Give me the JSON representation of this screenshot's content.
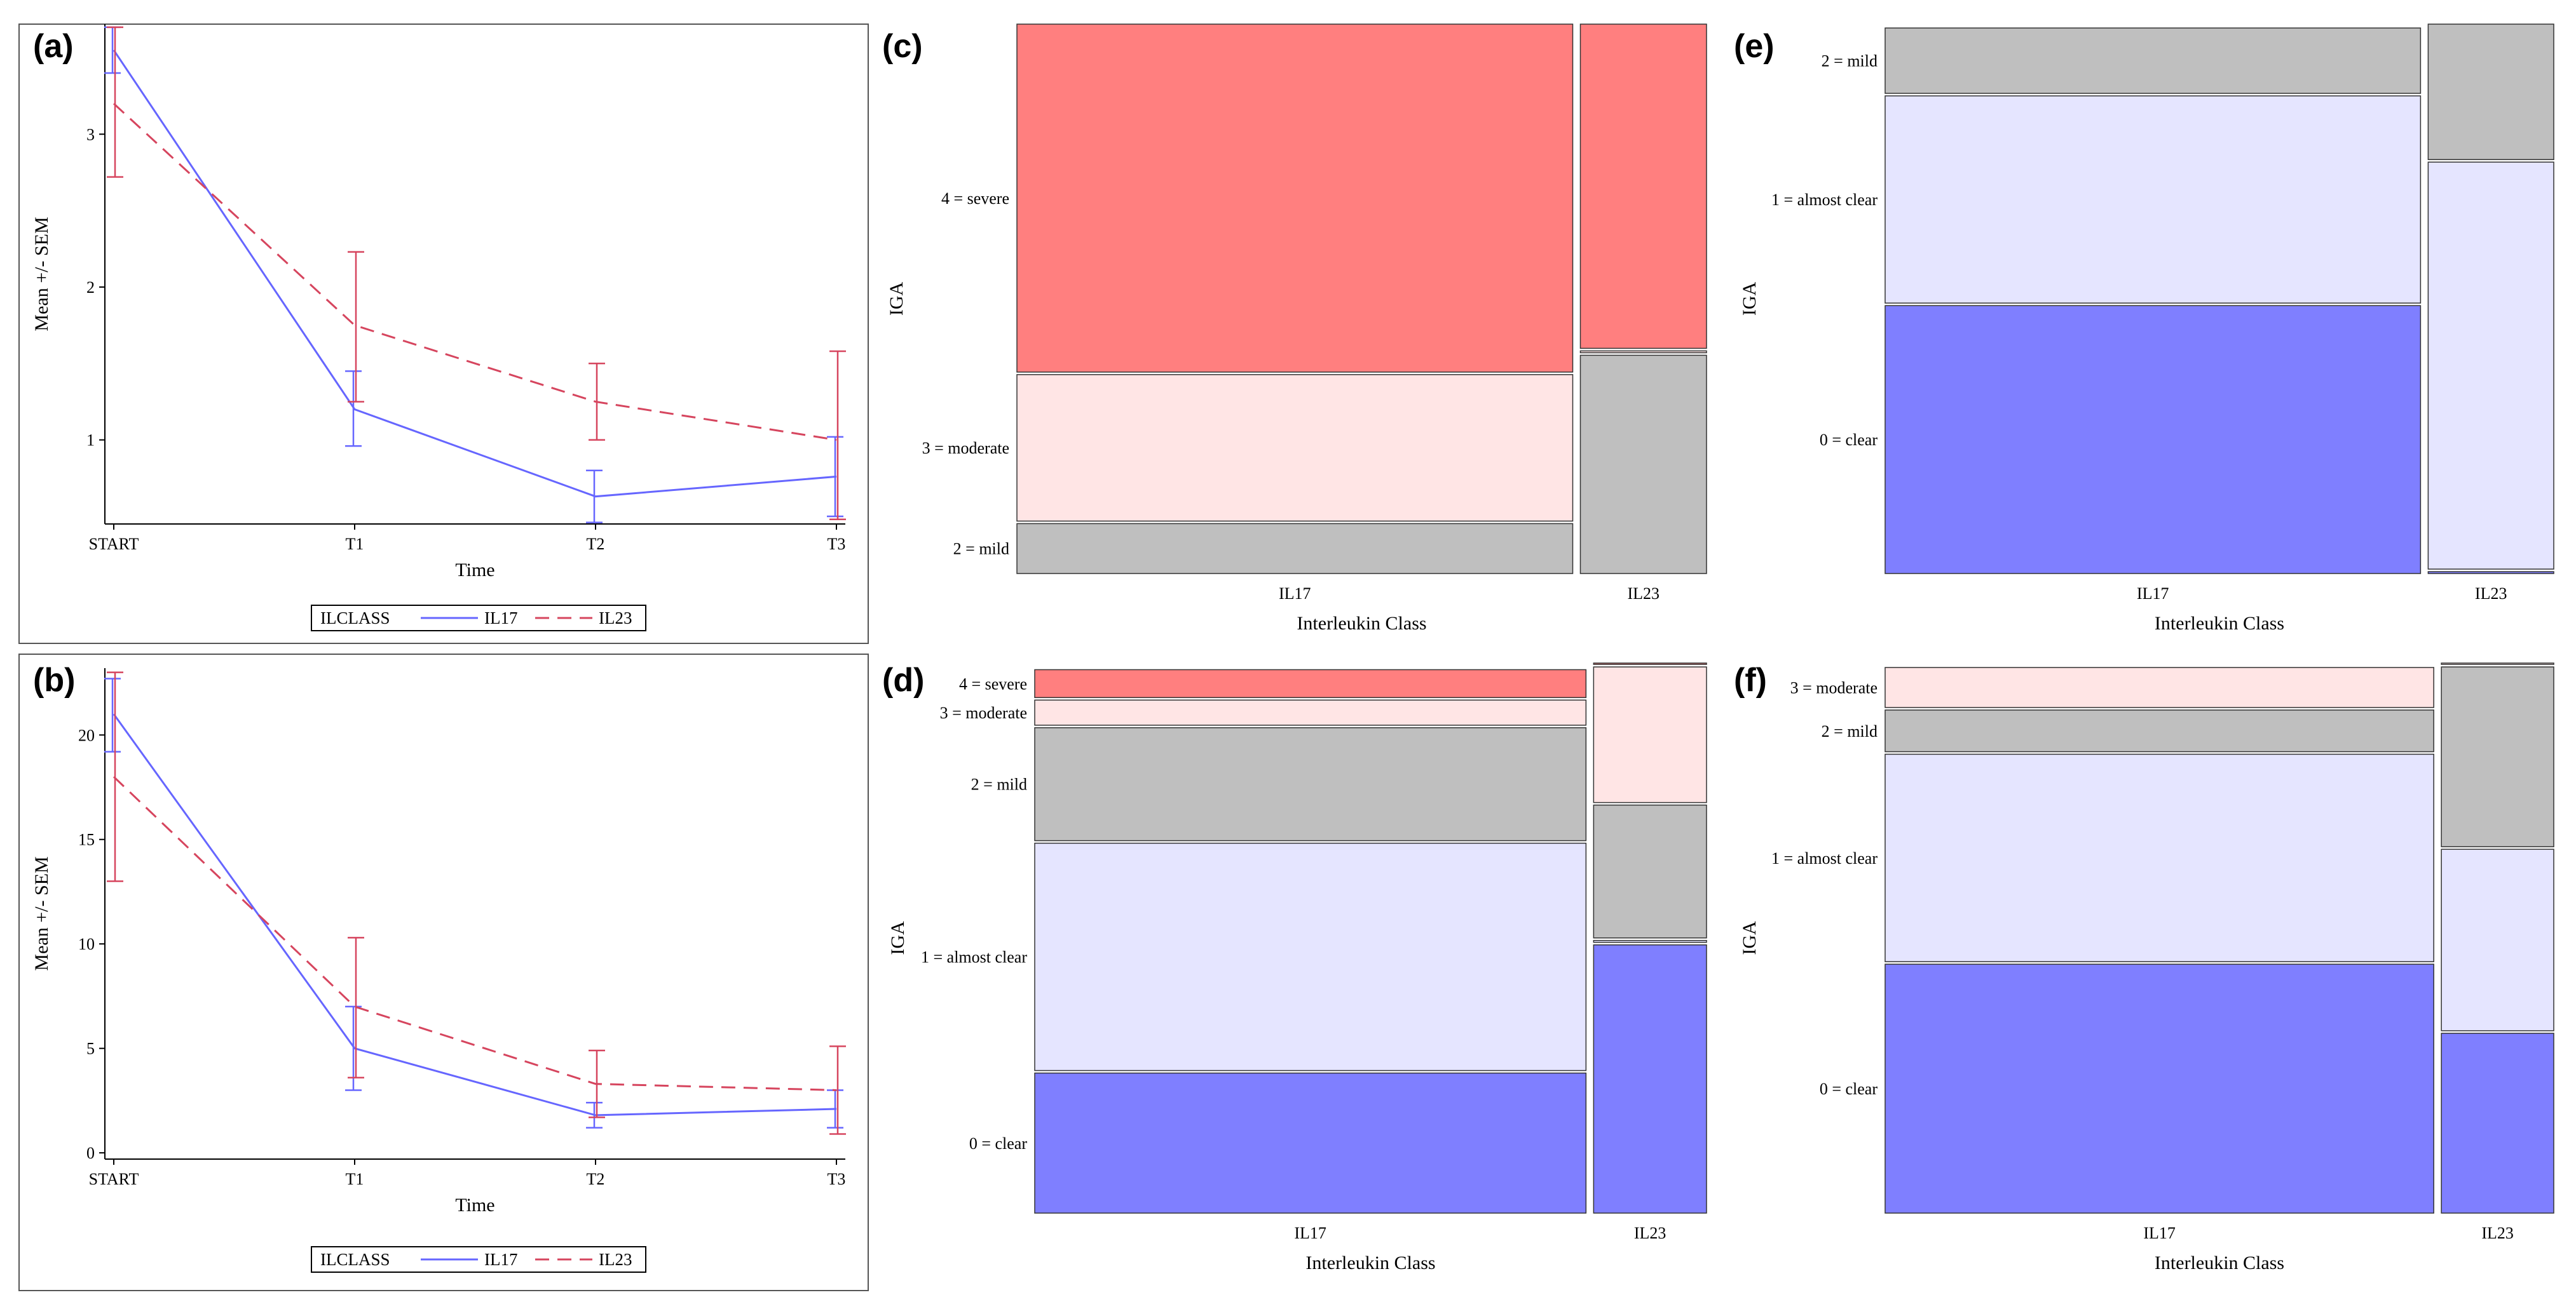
{
  "colors": {
    "il17": "#6666ff",
    "il23": "#d6455e",
    "severe": "#ff7f7f",
    "moderate": "#ffe5e5",
    "mild": "#bfbfbf",
    "almost_clear": "#e5e5ff",
    "clear": "#7f7fff"
  },
  "chart_data": [
    {
      "panel": "(a)",
      "type": "line",
      "xlabel": "Time",
      "ylabel": "Mean +/- SEM",
      "categories": [
        "START",
        "T1",
        "T2",
        "T3"
      ],
      "yticks": [
        "1",
        "2",
        "3"
      ],
      "yticks_values": [
        1,
        2,
        3
      ],
      "ylim": [
        0.45,
        3.72
      ],
      "legend_title": "ILCLASS",
      "series": [
        {
          "name": "IL17",
          "values": [
            3.55,
            1.2,
            0.63,
            0.76
          ],
          "lower": [
            3.4,
            0.96,
            0.46,
            0.5
          ],
          "upper": [
            3.7,
            1.45,
            0.8,
            1.02
          ]
        },
        {
          "name": "IL23",
          "values": [
            3.2,
            1.75,
            1.25,
            1.0
          ],
          "lower": [
            2.72,
            1.25,
            1.0,
            0.48
          ],
          "upper": [
            3.7,
            2.23,
            1.5,
            1.58
          ]
        }
      ]
    },
    {
      "panel": "(b)",
      "type": "line",
      "xlabel": "Time",
      "ylabel": "Mean +/- SEM",
      "categories": [
        "START",
        "T1",
        "T2",
        "T3"
      ],
      "yticks": [
        "0",
        "5",
        "10",
        "15",
        "20"
      ],
      "yticks_values": [
        0,
        5,
        10,
        15,
        20
      ],
      "ylim": [
        -0.3,
        23.2
      ],
      "legend_title": "ILCLASS",
      "series": [
        {
          "name": "IL17",
          "values": [
            21.0,
            5.0,
            1.8,
            2.1
          ],
          "lower": [
            19.2,
            3.0,
            1.2,
            1.2
          ],
          "upper": [
            22.7,
            7.0,
            2.4,
            3.0
          ]
        },
        {
          "name": "IL23",
          "values": [
            18.0,
            7.0,
            3.3,
            3.0
          ],
          "lower": [
            13.0,
            3.6,
            1.7,
            0.9
          ],
          "upper": [
            23.0,
            10.3,
            4.9,
            5.1
          ]
        }
      ]
    },
    {
      "panel": "(c)",
      "type": "mosaic",
      "xlabel": "Interleukin Class",
      "ylabel": "IGA",
      "columns": [
        {
          "name": "IL17",
          "weight": 0.815,
          "segments": [
            {
              "level": "mild",
              "share": 0.095
            },
            {
              "level": "moderate",
              "share": 0.27
            },
            {
              "level": "severe",
              "share": 0.635
            }
          ]
        },
        {
          "name": "IL23",
          "weight": 0.185,
          "segments": [
            {
              "level": "mild",
              "share": 0.4
            },
            {
              "level": "moderate",
              "share": 0.008
            },
            {
              "level": "severe",
              "share": 0.592
            }
          ]
        }
      ],
      "row_labels": [
        {
          "text": "4 = severe",
          "level": "severe"
        },
        {
          "text": "3 = moderate",
          "level": "moderate"
        },
        {
          "text": "2 = mild",
          "level": "mild"
        }
      ]
    },
    {
      "panel": "(d)",
      "type": "mosaic",
      "xlabel": "Interleukin Class",
      "ylabel": "IGA",
      "columns": [
        {
          "name": "IL17",
          "weight": 0.83,
          "segments": [
            {
              "level": "clear",
              "share": 0.258
            },
            {
              "level": "almost_clear",
              "share": 0.416
            },
            {
              "level": "mild",
              "share": 0.209
            },
            {
              "level": "moderate",
              "share": 0.05
            },
            {
              "level": "severe",
              "share": 0.055
            }
          ]
        },
        {
          "name": "IL23",
          "weight": 0.17,
          "segments": [
            {
              "level": "clear",
              "share": 0.49
            },
            {
              "level": "almost_clear",
              "share": 0.008
            },
            {
              "level": "mild",
              "share": 0.245
            },
            {
              "level": "moderate",
              "share": 0.25
            },
            {
              "level": "severe",
              "share": 0.007
            }
          ]
        }
      ],
      "row_labels": [
        {
          "text": "4 = severe",
          "level": "severe"
        },
        {
          "text": "3 = moderate",
          "level": "moderate"
        },
        {
          "text": "2 = mild",
          "level": "mild"
        },
        {
          "text": "1 = almost clear",
          "level": "almost_clear"
        },
        {
          "text": "0 = clear",
          "level": "clear"
        }
      ]
    },
    {
      "panel": "(e)",
      "type": "mosaic",
      "xlabel": "Interleukin Class",
      "ylabel": "IGA",
      "columns": [
        {
          "name": "IL17",
          "weight": 0.81,
          "segments": [
            {
              "level": "clear",
              "share": 0.49
            },
            {
              "level": "almost_clear",
              "share": 0.38
            },
            {
              "level": "mild",
              "share": 0.123
            }
          ]
        },
        {
          "name": "IL23",
          "weight": 0.19,
          "segments": [
            {
              "level": "clear",
              "share": 0.008
            },
            {
              "level": "almost_clear",
              "share": 0.742
            },
            {
              "level": "mild",
              "share": 0.25
            }
          ]
        }
      ],
      "row_labels": [
        {
          "text": "2 = mild",
          "level": "mild"
        },
        {
          "text": "1 = almost clear",
          "level": "almost_clear"
        },
        {
          "text": "0 = clear",
          "level": "clear"
        }
      ]
    },
    {
      "panel": "(f)",
      "type": "mosaic",
      "xlabel": "Interleukin Class",
      "ylabel": "IGA",
      "columns": [
        {
          "name": "IL17",
          "weight": 0.83,
          "segments": [
            {
              "level": "clear",
              "share": 0.455
            },
            {
              "level": "almost_clear",
              "share": 0.38
            },
            {
              "level": "mild",
              "share": 0.08
            },
            {
              "level": "moderate",
              "share": 0.077
            }
          ]
        },
        {
          "name": "IL23",
          "weight": 0.17,
          "segments": [
            {
              "level": "clear",
              "share": 0.33
            },
            {
              "level": "almost_clear",
              "share": 0.333
            },
            {
              "level": "mild",
              "share": 0.33
            },
            {
              "level": "moderate",
              "share": 0.007
            }
          ]
        }
      ],
      "row_labels": [
        {
          "text": "3 = moderate",
          "level": "moderate"
        },
        {
          "text": "2 = mild",
          "level": "mild"
        },
        {
          "text": "1 = almost clear",
          "level": "almost_clear"
        },
        {
          "text": "0 = clear",
          "level": "clear"
        }
      ]
    }
  ]
}
